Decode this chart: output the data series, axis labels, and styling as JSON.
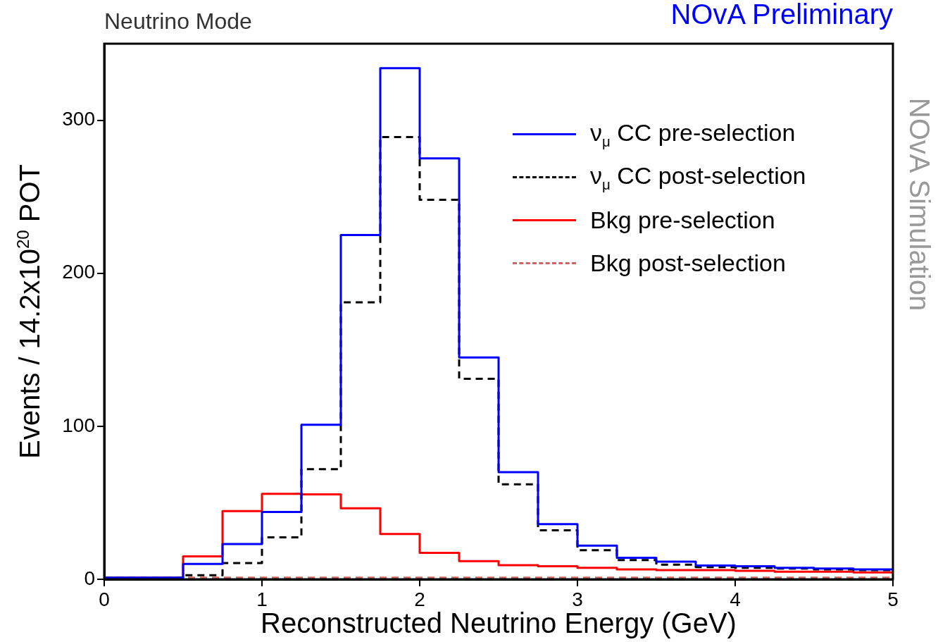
{
  "chart_data": {
    "type": "histogram",
    "title": "NOvA Preliminary",
    "subtitle": "Neutrino Mode",
    "xlabel": "Reconstructed Neutrino Energy (GeV)",
    "ylabel": "Events / 14.2x10$^{20}$ POT",
    "annotations": [
      "NOvA Simulation"
    ],
    "bins": [
      0,
      0.25,
      0.5,
      0.75,
      1,
      1.25,
      1.5,
      1.75,
      2,
      2.25,
      2.5,
      2.75,
      3,
      3.25,
      3.5,
      3.75,
      4,
      4.25,
      4.5,
      4.75,
      5
    ],
    "series": [
      {
        "name": "ν$_{μ}$ CC pre-selection",
        "color": "#0000ff",
        "line_style": "solid",
        "values": [
          1,
          1,
          10,
          23,
          44,
          101,
          225,
          334,
          275,
          145,
          70,
          36,
          22,
          14,
          11.5,
          9,
          8.5,
          7.5,
          7,
          6.5
        ]
      },
      {
        "name": "ν$_{μ}$ CC post-selection",
        "color": "#000000",
        "line_style": "dashed",
        "values": [
          1,
          1,
          2.7,
          10.6,
          27.4,
          72,
          181,
          289,
          248,
          131,
          62,
          32,
          19,
          12.5,
          9.5,
          8,
          7.5,
          7,
          6.5,
          6
        ]
      },
      {
        "name": "Bkg pre-selection",
        "color": "#ff0000",
        "line_style": "solid",
        "values": [
          1,
          1,
          15,
          44.6,
          55.8,
          55.5,
          46.4,
          29.6,
          17.3,
          11.9,
          9.2,
          8.5,
          7.5,
          6.5,
          6,
          6,
          5.5,
          5,
          5,
          4.5
        ]
      },
      {
        "name": "Bkg post-selection",
        "color": "#cc6666",
        "line_style": "dashed",
        "values": [
          1,
          1,
          1,
          1,
          1,
          1,
          1,
          1,
          1,
          1,
          1,
          1,
          1,
          1,
          1,
          1,
          1,
          1,
          1,
          1
        ]
      }
    ],
    "xlim": [
      0,
      5
    ],
    "ylim": [
      0,
      350
    ],
    "xticks": [
      0,
      1,
      2,
      3,
      4,
      5
    ],
    "yticks": [
      0,
      100,
      200,
      300
    ],
    "grid": false,
    "legend": "top right",
    "marker": "none"
  }
}
